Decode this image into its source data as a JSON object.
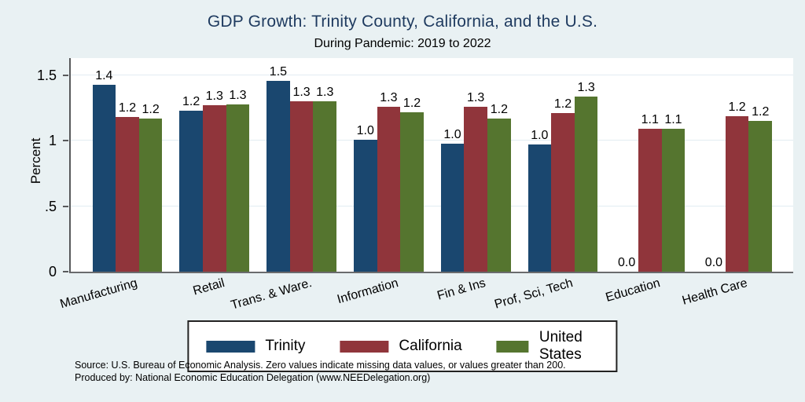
{
  "title": "GDP Growth: Trinity County, California, and the U.S.",
  "subtitle": "During Pandemic: 2019 to 2022",
  "footer": {
    "line1": "Source: U.S. Bureau of Economic Analysis. Zero values indicate missing data values, or values greater than 200.",
    "line2": "Produced by: National Economic Education Delegation (www.NEEDelegation.org)"
  },
  "colors": {
    "background": "#e9f1f3",
    "plot_background": "#ffffff",
    "title_text": "#1e3a5f",
    "axis_line": "#58595b",
    "gridline": "#e2ecf2",
    "trinity": "#1a476f",
    "california": "#90353b",
    "united_states": "#55752f"
  },
  "chart_data": {
    "type": "bar",
    "title": "GDP Growth: Trinity County, California, and the U.S.",
    "subtitle": "During Pandemic: 2019 to 2022",
    "xlabel": "",
    "ylabel": "Percent",
    "ylim": [
      0,
      1.633
    ],
    "grid": "horizontal",
    "legend_position": "bottom",
    "yticks": [
      {
        "value": 0,
        "label": "0"
      },
      {
        "value": 0.5,
        "label": ".5"
      },
      {
        "value": 1,
        "label": "1"
      },
      {
        "value": 1.5,
        "label": "1.5"
      }
    ],
    "categories": [
      "Manufacturing",
      "Retail",
      "Trans. & Ware.",
      "Information",
      "Fin & Ins",
      "Prof, Sci, Tech",
      "Education",
      "Health Care"
    ],
    "series": [
      {
        "name": "Trinity",
        "color": "#1a476f",
        "values": [
          1.43,
          1.23,
          1.46,
          1.01,
          0.98,
          0.97,
          0.0,
          0.0
        ],
        "labels": [
          "1.4",
          "1.2",
          "1.5",
          "1.0",
          "1.0",
          "1.0",
          "0.0",
          "0.0"
        ]
      },
      {
        "name": "California",
        "color": "#90353b",
        "values": [
          1.18,
          1.27,
          1.3,
          1.26,
          1.26,
          1.21,
          1.09,
          1.19
        ],
        "labels": [
          "1.2",
          "1.3",
          "1.3",
          "1.3",
          "1.3",
          "1.2",
          "1.1",
          "1.2"
        ]
      },
      {
        "name": "United States",
        "color": "#55752f",
        "values": [
          1.17,
          1.28,
          1.3,
          1.22,
          1.17,
          1.34,
          1.09,
          1.15
        ],
        "labels": [
          "1.2",
          "1.3",
          "1.3",
          "1.2",
          "1.2",
          "1.3",
          "1.1",
          "1.2"
        ]
      }
    ],
    "note": "Zero values indicate missing data values, or values greater than 200."
  },
  "legend": {
    "items": [
      {
        "label": "Trinity",
        "color": "#1a476f"
      },
      {
        "label": "California",
        "color": "#90353b"
      },
      {
        "label": "United States",
        "color": "#55752f"
      }
    ]
  }
}
